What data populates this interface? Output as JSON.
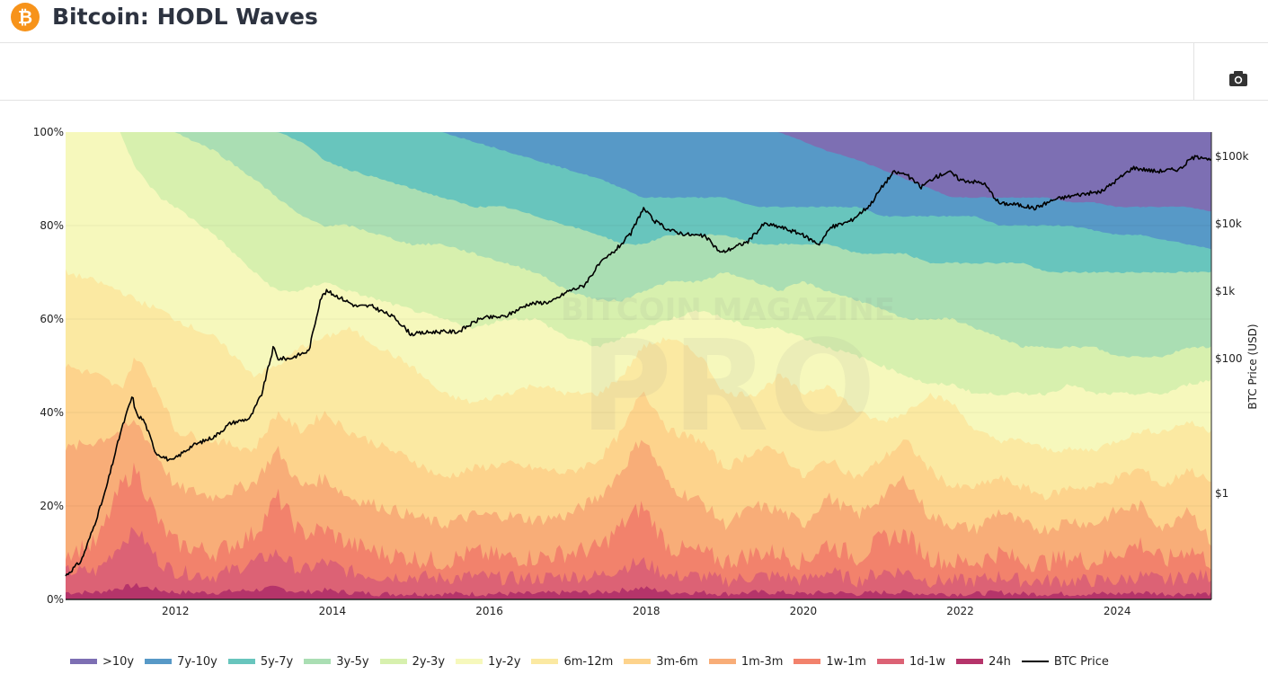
{
  "header": {
    "title": "Bitcoin: HODL Waves",
    "logo_icon": "bitcoin-icon",
    "logo_glyph": "₿"
  },
  "toolbar": {
    "screenshot_icon": "camera-icon"
  },
  "watermark": {
    "line1": "BITCOIN MAGAZINE",
    "line2": "PRO"
  },
  "chart_data": {
    "type": "area",
    "title": "Bitcoin: HODL Waves",
    "stacked": true,
    "xlabel": "",
    "ylabel": "",
    "y2label": "BTC Price (USD)",
    "x_range": [
      2010.6,
      2025.2
    ],
    "ylim": [
      0,
      100
    ],
    "y2_scale": "log",
    "y2lim": [
      0.25,
      250000
    ],
    "x_ticks": [
      "2012",
      "2014",
      "2016",
      "2018",
      "2020",
      "2022",
      "2024"
    ],
    "x_tick_values": [
      2012,
      2014,
      2016,
      2018,
      2020,
      2022,
      2024
    ],
    "y_ticks": [
      "0%",
      "20%",
      "40%",
      "60%",
      "80%",
      "100%"
    ],
    "y_tick_values": [
      0,
      20,
      40,
      60,
      80,
      100
    ],
    "y2_ticks": [
      "$1",
      "$100",
      "$1k",
      "$10k",
      "$100k"
    ],
    "y2_tick_values": [
      1,
      100,
      1000,
      10000,
      100000
    ],
    "grid": true,
    "legend_position": "bottom",
    "x": [
      2010.6,
      2011.0,
      2011.3,
      2011.5,
      2011.8,
      2012.0,
      2012.5,
      2013.0,
      2013.3,
      2013.6,
      2013.9,
      2014.2,
      2014.6,
      2015.0,
      2015.4,
      2015.8,
      2016.2,
      2016.6,
      2017.0,
      2017.4,
      2017.7,
      2017.95,
      2018.3,
      2018.7,
      2019.0,
      2019.4,
      2019.7,
      2020.0,
      2020.3,
      2020.7,
      2021.0,
      2021.3,
      2021.6,
      2021.9,
      2022.2,
      2022.5,
      2022.8,
      2023.1,
      2023.4,
      2023.7,
      2024.0,
      2024.3,
      2024.6,
      2024.9,
      2025.2
    ],
    "series": [
      {
        "name": "24h",
        "color": "#b5346a",
        "cumulative_top": [
          1.5,
          1.5,
          2.5,
          3,
          2,
          1.5,
          1.5,
          2,
          2.5,
          1.5,
          2,
          1.5,
          1.2,
          1.2,
          1.2,
          1.2,
          1.2,
          1.2,
          1.5,
          1.5,
          2,
          2.5,
          1.5,
          1.5,
          1.2,
          1.5,
          1.5,
          1.2,
          1.5,
          1.2,
          1.5,
          1.5,
          1.2,
          1.2,
          1.2,
          1.5,
          1.2,
          1.2,
          1.2,
          1.2,
          1.2,
          1.5,
          1.2,
          1.2,
          1.2
        ]
      },
      {
        "name": "1d-1w",
        "color": "#dc6275",
        "cumulative_top": [
          6,
          6,
          12,
          15,
          8,
          6,
          5,
          8,
          10,
          6,
          8,
          6,
          5,
          5,
          4.5,
          5,
          4.5,
          4.5,
          5,
          5,
          7,
          8,
          5,
          5,
          4,
          5,
          5,
          4,
          6,
          4,
          6,
          6,
          4,
          4,
          4,
          5,
          4,
          4,
          4,
          4,
          4,
          5,
          4,
          5,
          5
        ]
      },
      {
        "name": "1w-1m",
        "color": "#f2826c",
        "cumulative_top": [
          10,
          12,
          24,
          28,
          16,
          12,
          10,
          14,
          22,
          14,
          15,
          12,
          10,
          9,
          8,
          10,
          9,
          9,
          10,
          11,
          16,
          20,
          11,
          10,
          8,
          10,
          10,
          8,
          12,
          9,
          13,
          14,
          9,
          8,
          8,
          10,
          8,
          8,
          9,
          8,
          10,
          12,
          8,
          11,
          8
        ]
      },
      {
        "name": "1m-3m",
        "color": "#f8ad78",
        "cumulative_top": [
          32,
          34,
          36,
          38,
          30,
          24,
          22,
          25,
          32,
          24,
          26,
          22,
          20,
          18,
          16,
          18,
          18,
          17,
          18,
          22,
          28,
          35,
          24,
          21,
          16,
          20,
          19,
          16,
          22,
          18,
          22,
          26,
          18,
          16,
          15,
          19,
          16,
          15,
          17,
          16,
          19,
          20,
          15,
          20,
          12
        ]
      },
      {
        "name": "3m-6m",
        "color": "#fdd38c",
        "cumulative_top": [
          50,
          48,
          45,
          52,
          44,
          36,
          34,
          32,
          40,
          36,
          40,
          36,
          33,
          30,
          26,
          28,
          29,
          28,
          27,
          30,
          36,
          45,
          36,
          34,
          28,
          32,
          32,
          26,
          30,
          26,
          30,
          34,
          28,
          24,
          24,
          26,
          24,
          22,
          24,
          24,
          26,
          28,
          24,
          28,
          25
        ]
      },
      {
        "name": "6m-12m",
        "color": "#fbe9a2",
        "cumulative_top": [
          70,
          68,
          66,
          64,
          62,
          60,
          56,
          48,
          50,
          54,
          56,
          58,
          54,
          50,
          44,
          42,
          44,
          46,
          44,
          44,
          48,
          54,
          56,
          52,
          44,
          44,
          48,
          44,
          46,
          40,
          38,
          40,
          44,
          42,
          36,
          34,
          34,
          32,
          32,
          32,
          34,
          36,
          36,
          38,
          36
        ]
      },
      {
        "name": "1y-2y",
        "color": "#f6f8bc",
        "cumulative_top": [
          100,
          100,
          100,
          92,
          86,
          84,
          78,
          70,
          66,
          66,
          68,
          66,
          64,
          62,
          60,
          58,
          60,
          60,
          56,
          54,
          56,
          58,
          60,
          62,
          60,
          58,
          58,
          56,
          54,
          52,
          50,
          48,
          46,
          46,
          44,
          44,
          44,
          44,
          46,
          44,
          44,
          44,
          44,
          46,
          47
        ]
      },
      {
        "name": "2y-3y",
        "color": "#d7f0ae",
        "cumulative_top": [
          100,
          100,
          100,
          100,
          100,
          100,
          96,
          90,
          86,
          82,
          80,
          80,
          78,
          76,
          76,
          74,
          72,
          70,
          66,
          64,
          64,
          66,
          68,
          68,
          70,
          68,
          66,
          68,
          66,
          64,
          62,
          60,
          60,
          60,
          58,
          56,
          54,
          54,
          54,
          54,
          52,
          52,
          52,
          54,
          54
        ]
      },
      {
        "name": "3y-5y",
        "color": "#aadeb3",
        "cumulative_top": [
          100,
          100,
          100,
          100,
          100,
          100,
          100,
          100,
          100,
          98,
          94,
          92,
          90,
          88,
          86,
          84,
          84,
          82,
          80,
          78,
          76,
          76,
          78,
          78,
          78,
          76,
          76,
          76,
          76,
          74,
          74,
          74,
          72,
          72,
          72,
          72,
          72,
          70,
          70,
          70,
          70,
          70,
          70,
          70,
          70
        ]
      },
      {
        "name": "5y-7y",
        "color": "#68c5bd",
        "cumulative_top": [
          100,
          100,
          100,
          100,
          100,
          100,
          100,
          100,
          100,
          100,
          100,
          100,
          100,
          100,
          100,
          98,
          96,
          94,
          92,
          90,
          88,
          86,
          86,
          86,
          86,
          84,
          84,
          84,
          84,
          84,
          82,
          82,
          82,
          82,
          82,
          80,
          80,
          80,
          80,
          79,
          78,
          78,
          77,
          76,
          75
        ]
      },
      {
        "name": "7y-10y",
        "color": "#5799c7",
        "cumulative_top": [
          100,
          100,
          100,
          100,
          100,
          100,
          100,
          100,
          100,
          100,
          100,
          100,
          100,
          100,
          100,
          100,
          100,
          100,
          100,
          100,
          100,
          100,
          100,
          100,
          100,
          100,
          100,
          98,
          96,
          94,
          92,
          90,
          88,
          86,
          86,
          86,
          86,
          86,
          85,
          85,
          84,
          84,
          84,
          84,
          83
        ]
      },
      {
        "name": ">10y",
        "color": "#7d6fb3",
        "cumulative_top": [
          100,
          100,
          100,
          100,
          100,
          100,
          100,
          100,
          100,
          100,
          100,
          100,
          100,
          100,
          100,
          100,
          100,
          100,
          100,
          100,
          100,
          100,
          100,
          100,
          100,
          100,
          100,
          100,
          100,
          100,
          100,
          100,
          100,
          100,
          100,
          100,
          100,
          100,
          100,
          100,
          100,
          100,
          100,
          100,
          100
        ]
      }
    ],
    "price_series": {
      "name": "BTC Price",
      "color": "#000000",
      "x": [
        2010.6,
        2010.8,
        2010.95,
        2011.1,
        2011.3,
        2011.45,
        2011.5,
        2011.6,
        2011.75,
        2011.95,
        2012.2,
        2012.5,
        2012.7,
        2012.95,
        2013.1,
        2013.25,
        2013.3,
        2013.45,
        2013.7,
        2013.85,
        2013.93,
        2014.1,
        2014.3,
        2014.5,
        2014.8,
        2015.0,
        2015.3,
        2015.6,
        2015.9,
        2016.2,
        2016.5,
        2016.8,
        2017.0,
        2017.2,
        2017.4,
        2017.6,
        2017.8,
        2017.96,
        2018.1,
        2018.3,
        2018.5,
        2018.75,
        2018.95,
        2019.3,
        2019.5,
        2019.7,
        2019.95,
        2020.2,
        2020.35,
        2020.6,
        2020.85,
        2021.0,
        2021.15,
        2021.3,
        2021.5,
        2021.65,
        2021.85,
        2022.0,
        2022.3,
        2022.5,
        2022.7,
        2022.95,
        2023.2,
        2023.5,
        2023.8,
        2024.0,
        2024.2,
        2024.5,
        2024.8,
        2024.95,
        2025.1,
        2025.2
      ],
      "values": [
        0.06,
        0.1,
        0.3,
        1,
        8,
        28,
        15,
        12,
        4,
        3,
        5,
        7,
        11,
        13,
        30,
        150,
        100,
        100,
        130,
        800,
        1000,
        800,
        600,
        600,
        400,
        230,
        250,
        250,
        400,
        420,
        650,
        700,
        1000,
        1200,
        2500,
        4000,
        7000,
        17000,
        11000,
        8000,
        7000,
        6500,
        3700,
        5500,
        10000,
        9000,
        7200,
        5000,
        8800,
        11000,
        19000,
        35000,
        58000,
        55000,
        35000,
        47000,
        60000,
        45000,
        40000,
        20000,
        19500,
        17000,
        23000,
        27000,
        30000,
        45000,
        68000,
        60000,
        65000,
        95000,
        100000,
        85000
      ]
    }
  }
}
